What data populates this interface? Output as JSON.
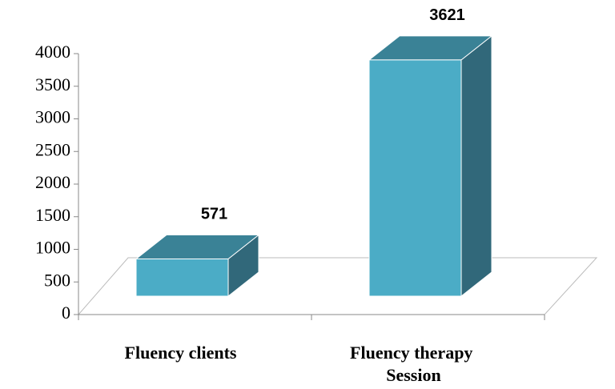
{
  "chart_data": {
    "type": "bar3d",
    "categories": [
      "Fluency clients",
      "Fluency therapy Session"
    ],
    "values": [
      571,
      3621
    ],
    "color": "#4bacc6",
    "ylim": [
      0,
      4000
    ],
    "yticks": [
      0,
      500,
      1000,
      1500,
      2000,
      2500,
      3000,
      3500,
      4000
    ]
  }
}
